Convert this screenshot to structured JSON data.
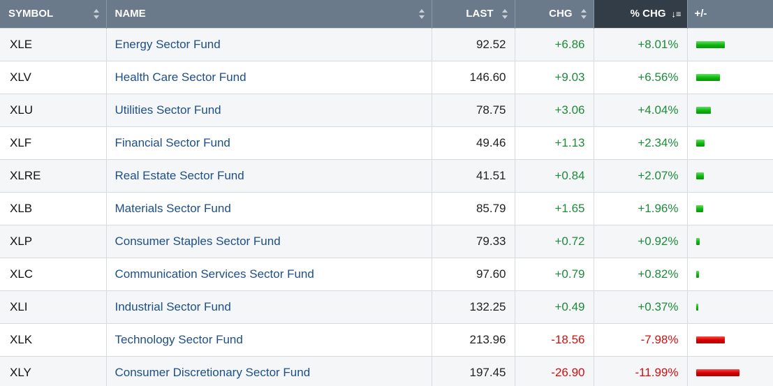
{
  "header": {
    "symbol": "SYMBOL",
    "name": "NAME",
    "last": "LAST",
    "chg": "CHG",
    "pct_chg": "% CHG",
    "bar": "+/-"
  },
  "colors": {
    "header_bg": "#6b7a8b",
    "sorted_header_bg": "#333d47",
    "positive": "#1e8b3a",
    "negative": "#d20f0f",
    "link": "#1d4f86"
  },
  "rows": [
    {
      "symbol": "XLE",
      "name": "Energy Sector Fund",
      "last": "92.52",
      "chg": "+6.86",
      "pct": "+8.01%",
      "pct_value": 8.01,
      "direction": "up"
    },
    {
      "symbol": "XLV",
      "name": "Health Care Sector Fund",
      "last": "146.60",
      "chg": "+9.03",
      "pct": "+6.56%",
      "pct_value": 6.56,
      "direction": "up"
    },
    {
      "symbol": "XLU",
      "name": "Utilities Sector Fund",
      "last": "78.75",
      "chg": "+3.06",
      "pct": "+4.04%",
      "pct_value": 4.04,
      "direction": "up"
    },
    {
      "symbol": "XLF",
      "name": "Financial Sector Fund",
      "last": "49.46",
      "chg": "+1.13",
      "pct": "+2.34%",
      "pct_value": 2.34,
      "direction": "up"
    },
    {
      "symbol": "XLRE",
      "name": "Real Estate Sector Fund",
      "last": "41.51",
      "chg": "+0.84",
      "pct": "+2.07%",
      "pct_value": 2.07,
      "direction": "up"
    },
    {
      "symbol": "XLB",
      "name": "Materials Sector Fund",
      "last": "85.79",
      "chg": "+1.65",
      "pct": "+1.96%",
      "pct_value": 1.96,
      "direction": "up"
    },
    {
      "symbol": "XLP",
      "name": "Consumer Staples Sector Fund",
      "last": "79.33",
      "chg": "+0.72",
      "pct": "+0.92%",
      "pct_value": 0.92,
      "direction": "up"
    },
    {
      "symbol": "XLC",
      "name": "Communication Services Sector Fund",
      "last": "97.60",
      "chg": "+0.79",
      "pct": "+0.82%",
      "pct_value": 0.82,
      "direction": "up"
    },
    {
      "symbol": "XLI",
      "name": "Industrial Sector Fund",
      "last": "132.25",
      "chg": "+0.49",
      "pct": "+0.37%",
      "pct_value": 0.37,
      "direction": "up"
    },
    {
      "symbol": "XLK",
      "name": "Technology Sector Fund",
      "last": "213.96",
      "chg": "-18.56",
      "pct": "-7.98%",
      "pct_value": -7.98,
      "direction": "down"
    },
    {
      "symbol": "XLY",
      "name": "Consumer Discretionary Sector Fund",
      "last": "197.45",
      "chg": "-26.90",
      "pct": "-11.99%",
      "pct_value": -11.99,
      "direction": "down"
    }
  ]
}
